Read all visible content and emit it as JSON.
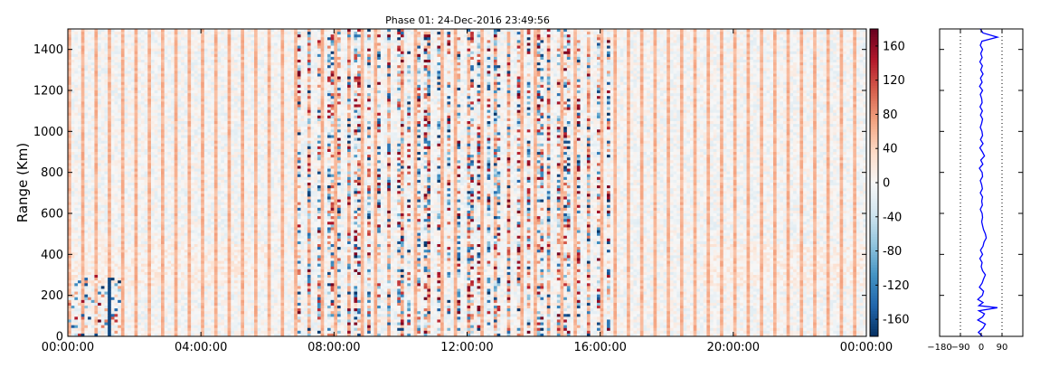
{
  "chart_data": [
    {
      "type": "heatmap",
      "title": "Phase 01: 24-Dec-2016 23:49:56",
      "xlabel": "",
      "ylabel": "Range (Km)",
      "xlim": [
        "00:00:00",
        "24:00:00"
      ],
      "ylim": [
        0,
        1500
      ],
      "x_tick_labels": [
        "00:00:00",
        "04:00:00",
        "08:00:00",
        "12:00:00",
        "16:00:00",
        "20:00:00",
        "00:00:00"
      ],
      "y_ticks": [
        0,
        200,
        400,
        600,
        800,
        1000,
        1200,
        1400
      ],
      "colormap": "RdBu_r",
      "color_range": [
        -180,
        180
      ],
      "colorbar_ticks": [
        -160,
        -120,
        -80,
        -40,
        0,
        40,
        80,
        120,
        160
      ],
      "pattern": "alternating vertical stripes of positive (~+60) and near-zero phase; strongly noisy columns (values spanning -180..180) concentrated between ~07:00 and ~16:00",
      "colors": {
        "positive": "#f4a582",
        "negative": "#2166ac",
        "extreme_positive": "#8b0000",
        "extreme_negative": "#053061"
      }
    },
    {
      "type": "line",
      "title": "",
      "xlabel": "",
      "ylabel": "",
      "xlim": [
        -180,
        180
      ],
      "ylim": [
        0,
        1500
      ],
      "x_ticks": [
        -180,
        -90,
        0,
        90
      ],
      "x_tick_labels": [
        "−180",
        "−90",
        "0",
        "90"
      ],
      "vertical_dotted_lines_at": [
        -90,
        90
      ],
      "series": [
        {
          "color": "#0000ff",
          "profile": [
            [
              0,
              5
            ],
            [
              20,
              -12
            ],
            [
              40,
              8
            ],
            [
              60,
              18
            ],
            [
              80,
              -15
            ],
            [
              95,
              6
            ],
            [
              110,
              14
            ],
            [
              125,
              -10
            ],
            [
              140,
              70
            ],
            [
              150,
              -10
            ],
            [
              165,
              8
            ],
            [
              180,
              -15
            ],
            [
              200,
              5
            ],
            [
              220,
              10
            ],
            [
              240,
              -8
            ],
            [
              260,
              4
            ],
            [
              280,
              10
            ],
            [
              300,
              18
            ],
            [
              320,
              6
            ],
            [
              340,
              0
            ],
            [
              360,
              4
            ],
            [
              380,
              -6
            ],
            [
              400,
              6
            ],
            [
              420,
              -3
            ],
            [
              440,
              8
            ],
            [
              460,
              12
            ],
            [
              480,
              22
            ],
            [
              500,
              18
            ],
            [
              520,
              10
            ],
            [
              540,
              6
            ],
            [
              560,
              2
            ],
            [
              580,
              6
            ],
            [
              600,
              4
            ],
            [
              620,
              -4
            ],
            [
              640,
              5
            ],
            [
              660,
              2
            ],
            [
              680,
              6
            ],
            [
              700,
              -4
            ],
            [
              720,
              5
            ],
            [
              740,
              2
            ],
            [
              760,
              -4
            ],
            [
              780,
              6
            ],
            [
              800,
              4
            ],
            [
              820,
              -8
            ],
            [
              840,
              7
            ],
            [
              860,
              -2
            ],
            [
              880,
              14
            ],
            [
              900,
              5
            ],
            [
              920,
              -6
            ],
            [
              940,
              8
            ],
            [
              960,
              -3
            ],
            [
              980,
              6
            ],
            [
              1000,
              3
            ],
            [
              1020,
              -4
            ],
            [
              1040,
              2
            ],
            [
              1060,
              6
            ],
            [
              1080,
              -3
            ],
            [
              1100,
              5
            ],
            [
              1120,
              -5
            ],
            [
              1140,
              4
            ],
            [
              1160,
              2
            ],
            [
              1180,
              -4
            ],
            [
              1200,
              6
            ],
            [
              1220,
              -7
            ],
            [
              1240,
              4
            ],
            [
              1260,
              -3
            ],
            [
              1280,
              8
            ],
            [
              1300,
              -2
            ],
            [
              1320,
              5
            ],
            [
              1340,
              -6
            ],
            [
              1360,
              4
            ],
            [
              1380,
              -2
            ],
            [
              1400,
              6
            ],
            [
              1420,
              -4
            ],
            [
              1440,
              3
            ],
            [
              1460,
              70
            ],
            [
              1480,
              8
            ],
            [
              1500,
              -4
            ]
          ]
        }
      ]
    }
  ]
}
